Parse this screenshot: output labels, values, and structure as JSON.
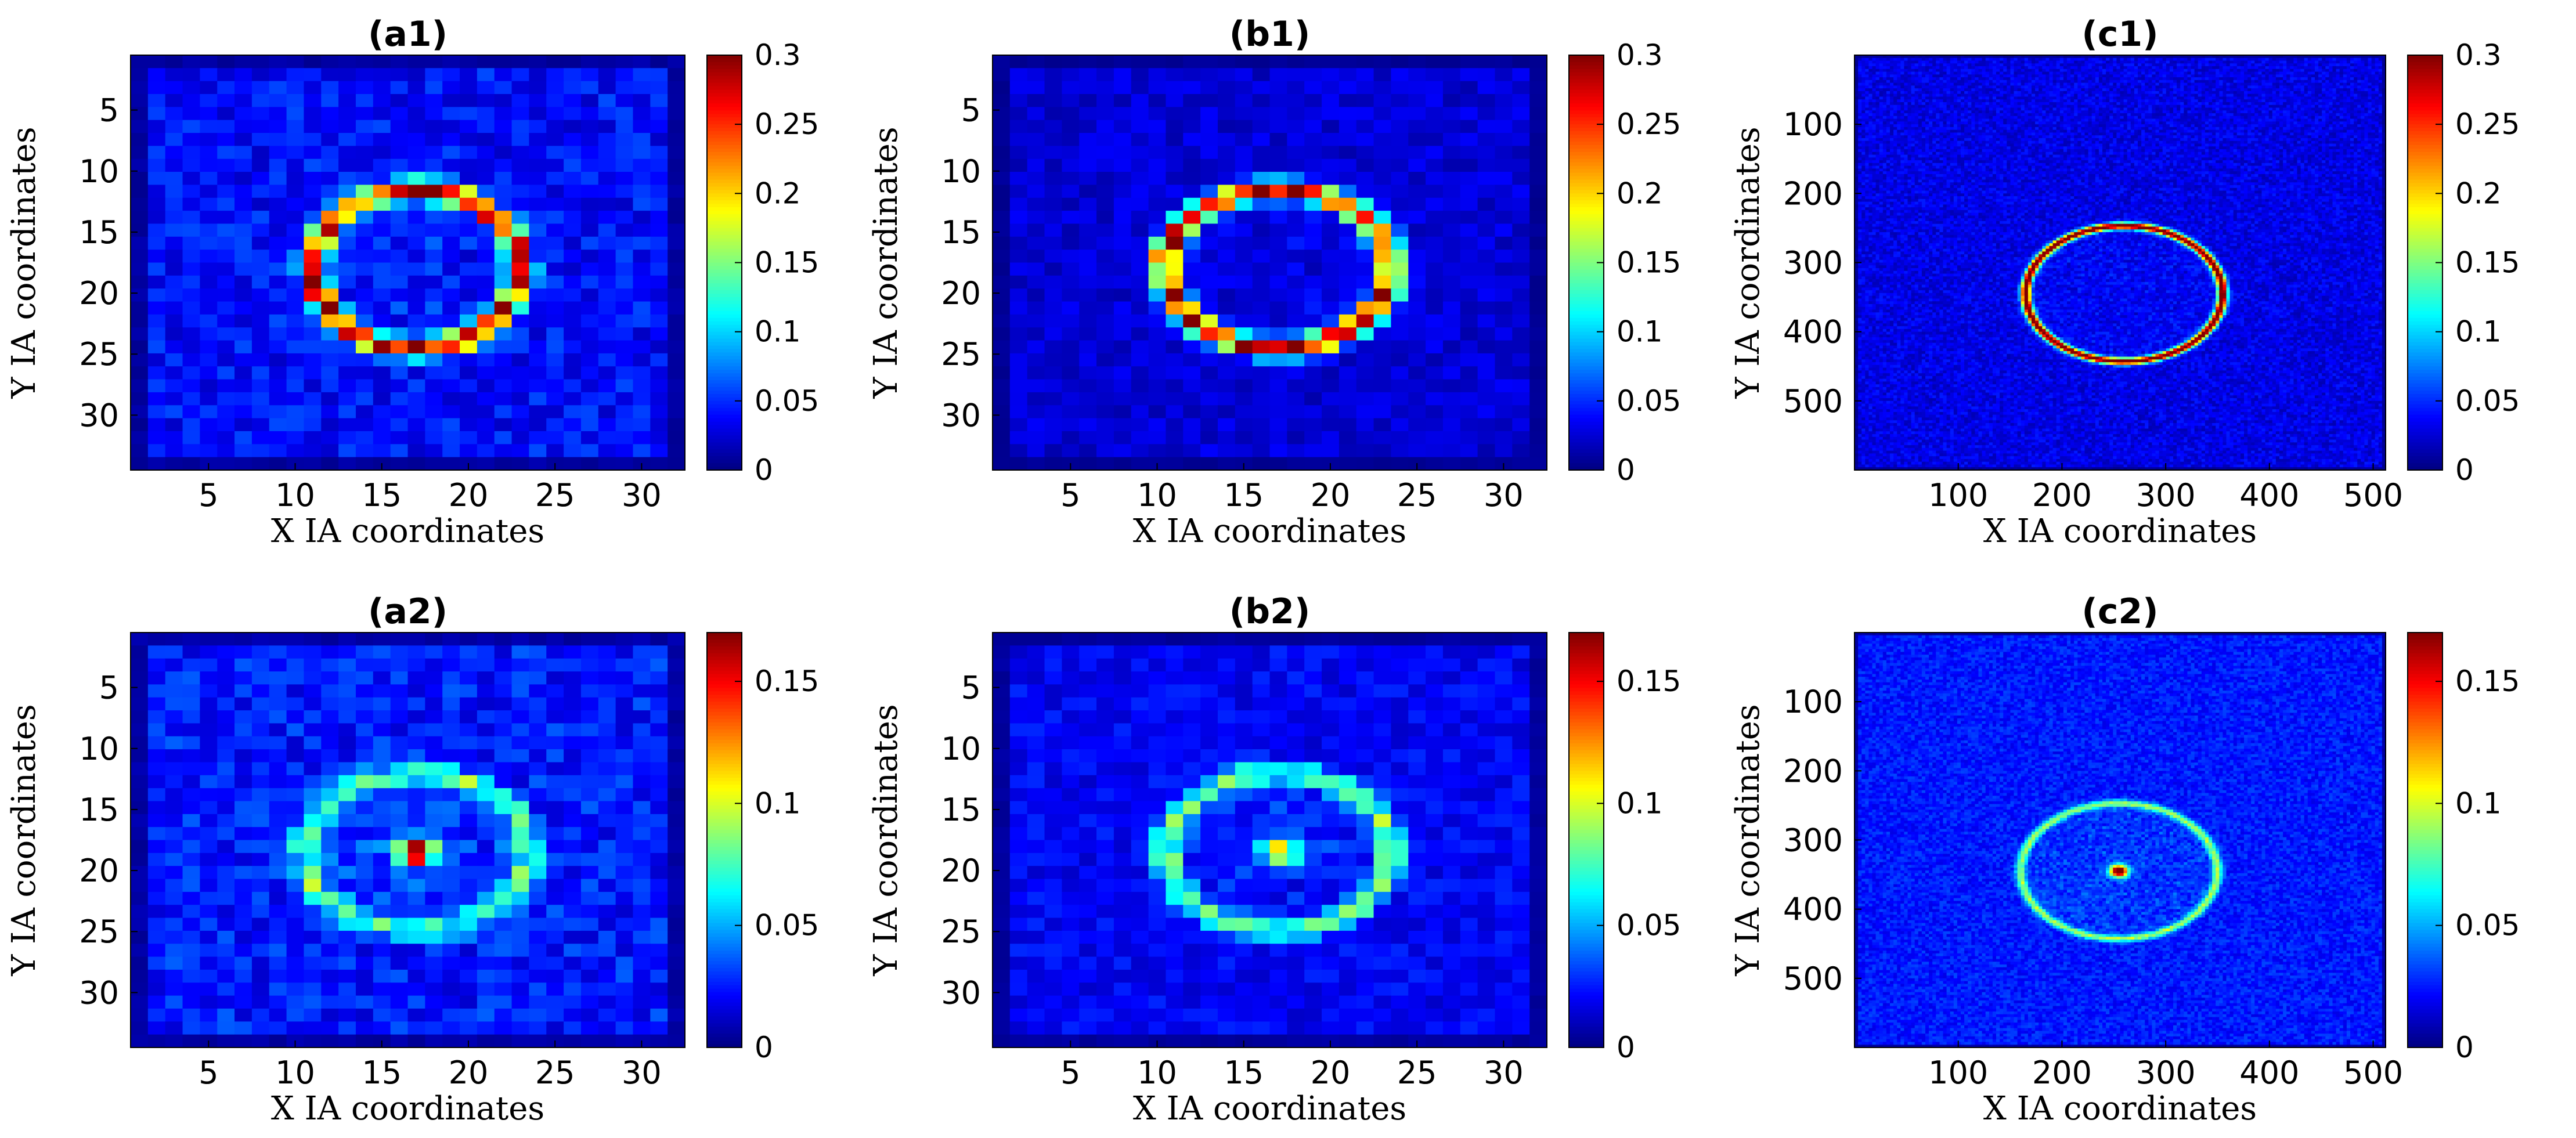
{
  "chart_data": [
    {
      "id": "a1",
      "type": "heatmap",
      "title": "(a1)",
      "xlabel": "X IA coordinates",
      "ylabel": "Y IA coordinates",
      "grid_cells": 32,
      "xlim": [
        0.5,
        32.5
      ],
      "ylim": [
        0.5,
        34.5
      ],
      "xticks": [
        5,
        10,
        15,
        20,
        25,
        30
      ],
      "yticks": [
        5,
        10,
        15,
        20,
        25,
        30
      ],
      "clim": [
        0,
        0.3
      ],
      "cbticks": [
        0,
        0.05,
        0.1,
        0.15,
        0.2,
        0.25,
        0.3
      ],
      "ring": {
        "cx": 17,
        "cy": 18,
        "rx": 6,
        "ry": 6.5,
        "peak": 0.24
      },
      "center_peak": 0,
      "background": 0.04,
      "noise": 0.02,
      "colormap": "jet"
    },
    {
      "id": "b1",
      "type": "heatmap",
      "title": "(b1)",
      "xlabel": "X IA coordinates",
      "ylabel": "Y IA coordinates",
      "grid_cells": 32,
      "xlim": [
        0.5,
        32.5
      ],
      "ylim": [
        0.5,
        34.5
      ],
      "xticks": [
        5,
        10,
        15,
        20,
        25,
        30
      ],
      "yticks": [
        5,
        10,
        15,
        20,
        25,
        30
      ],
      "clim": [
        0,
        0.3
      ],
      "cbticks": [
        0,
        0.05,
        0.1,
        0.15,
        0.2,
        0.25,
        0.3
      ],
      "ring": {
        "cx": 17,
        "cy": 18,
        "rx": 6.5,
        "ry": 6.5,
        "peak": 0.26
      },
      "center_peak": 0,
      "background": 0.025,
      "noise": 0.012,
      "colormap": "jet"
    },
    {
      "id": "c1",
      "type": "heatmap",
      "title": "(c1)",
      "xlabel": "X IA coordinates",
      "ylabel": "Y IA coordinates",
      "grid_cells": 150,
      "xlim": [
        0,
        512
      ],
      "ylim": [
        0,
        600
      ],
      "xticks": [
        100,
        200,
        300,
        400,
        500
      ],
      "yticks": [
        100,
        200,
        300,
        400,
        500
      ],
      "clim": [
        0,
        0.3
      ],
      "cbticks": [
        0,
        0.05,
        0.1,
        0.15,
        0.2,
        0.25,
        0.3
      ],
      "ring": {
        "cx": 260,
        "cy": 345,
        "rx": 95,
        "ry": 98,
        "peak": 0.29
      },
      "center_peak": 0,
      "background": 0.03,
      "noise": 0.015,
      "colormap": "jet"
    },
    {
      "id": "a2",
      "type": "heatmap",
      "title": "(a2)",
      "xlabel": "X IA coordinates",
      "ylabel": "Y IA coordinates",
      "grid_cells": 32,
      "xlim": [
        0.5,
        32.5
      ],
      "ylim": [
        0.5,
        34.5
      ],
      "xticks": [
        5,
        10,
        15,
        20,
        25,
        30
      ],
      "yticks": [
        5,
        10,
        15,
        20,
        25,
        30
      ],
      "clim": [
        0,
        0.17
      ],
      "cbticks": [
        0,
        0.05,
        0.1,
        0.15
      ],
      "ring": {
        "cx": 17,
        "cy": 18.5,
        "rx": 6.5,
        "ry": 6.5,
        "peak": 0.055
      },
      "center_peak": 0.17,
      "background": 0.025,
      "noise": 0.012,
      "colormap": "jet"
    },
    {
      "id": "b2",
      "type": "heatmap",
      "title": "(b2)",
      "xlabel": "X IA coordinates",
      "ylabel": "Y IA coordinates",
      "grid_cells": 32,
      "xlim": [
        0.5,
        32.5
      ],
      "ylim": [
        0.5,
        34.5
      ],
      "xticks": [
        5,
        10,
        15,
        20,
        25,
        30
      ],
      "yticks": [
        5,
        10,
        15,
        20,
        25,
        30
      ],
      "clim": [
        0,
        0.17
      ],
      "cbticks": [
        0,
        0.05,
        0.1,
        0.15
      ],
      "ring": {
        "cx": 17,
        "cy": 18.5,
        "rx": 6.5,
        "ry": 6.5,
        "peak": 0.065
      },
      "center_peak": 0.1,
      "background": 0.02,
      "noise": 0.008,
      "colormap": "jet"
    },
    {
      "id": "c2",
      "type": "heatmap",
      "title": "(c2)",
      "xlabel": "X IA coordinates",
      "ylabel": "Y IA coordinates",
      "grid_cells": 150,
      "xlim": [
        0,
        512
      ],
      "ylim": [
        0,
        600
      ],
      "xticks": [
        100,
        200,
        300,
        400,
        500
      ],
      "yticks": [
        100,
        200,
        300,
        400,
        500
      ],
      "clim": [
        0,
        0.17
      ],
      "cbticks": [
        0,
        0.05,
        0.1,
        0.15
      ],
      "ring": {
        "cx": 255,
        "cy": 345,
        "rx": 95,
        "ry": 98,
        "peak": 0.065
      },
      "center_peak": 0.17,
      "background": 0.025,
      "noise": 0.008,
      "colormap": "jet"
    }
  ]
}
